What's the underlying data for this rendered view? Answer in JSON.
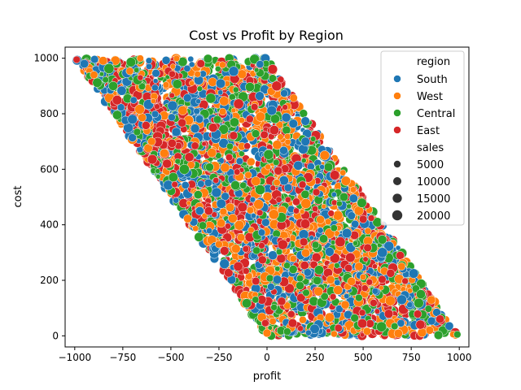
{
  "chart_data": {
    "type": "scatter",
    "title": "Cost vs Profit by Region",
    "xlabel": "profit",
    "ylabel": "cost",
    "xlim": [
      -1050,
      1050
    ],
    "ylim": [
      -40,
      1040
    ],
    "x_ticks": [
      -1000,
      -750,
      -500,
      -250,
      0,
      250,
      500,
      750,
      1000
    ],
    "y_ticks": [
      0,
      200,
      400,
      600,
      800,
      1000
    ],
    "grid": false,
    "data_region": {
      "description_note": "points fill parallelogram bounded by profit from (-cost) to (1000 - cost)",
      "cost_range": [
        0,
        1000
      ],
      "profit_offset_range": [
        0,
        1000
      ]
    },
    "hue_legend_title": "region",
    "size_legend_title": "sales",
    "series": [
      {
        "name": "South",
        "color": "#1f77b4"
      },
      {
        "name": "West",
        "color": "#ff7f0e"
      },
      {
        "name": "Central",
        "color": "#2ca02c"
      },
      {
        "name": "East",
        "color": "#d62728"
      }
    ],
    "size_legend": [
      5000,
      10000,
      15000,
      20000
    ],
    "legend_placement": "top-right",
    "sample_points": [
      {
        "profit": -990,
        "cost": 995,
        "sales": 6000,
        "region": "East"
      },
      {
        "profit": -950,
        "cost": 980,
        "sales": 12000,
        "region": "South"
      },
      {
        "profit": -900,
        "cost": 940,
        "sales": 8000,
        "region": "West"
      },
      {
        "profit": -800,
        "cost": 900,
        "sales": 15000,
        "region": "Central"
      },
      {
        "profit": -700,
        "cost": 780,
        "sales": 18000,
        "region": "South"
      },
      {
        "profit": -600,
        "cost": 700,
        "sales": 9000,
        "region": "West"
      },
      {
        "profit": -520,
        "cost": 620,
        "sales": 14000,
        "region": "East"
      },
      {
        "profit": -430,
        "cost": 600,
        "sales": 20000,
        "region": "Central"
      },
      {
        "profit": -350,
        "cost": 450,
        "sales": 11000,
        "region": "South"
      },
      {
        "profit": -250,
        "cost": 330,
        "sales": 7000,
        "region": "West"
      },
      {
        "profit": -150,
        "cost": 250,
        "sales": 16000,
        "region": "East"
      },
      {
        "profit": -60,
        "cost": 130,
        "sales": 5000,
        "region": "Central"
      },
      {
        "profit": 0,
        "cost": 10,
        "sales": 10000,
        "region": "West"
      },
      {
        "profit": 50,
        "cost": 900,
        "sales": 19000,
        "region": "East"
      },
      {
        "profit": 200,
        "cost": 700,
        "sales": 13000,
        "region": "South"
      },
      {
        "profit": 300,
        "cost": 650,
        "sales": 17000,
        "region": "West"
      },
      {
        "profit": 400,
        "cost": 500,
        "sales": 12000,
        "region": "Central"
      },
      {
        "profit": 500,
        "cost": 420,
        "sales": 9000,
        "region": "East"
      },
      {
        "profit": 600,
        "cost": 300,
        "sales": 20000,
        "region": "South"
      },
      {
        "profit": 700,
        "cost": 250,
        "sales": 8000,
        "region": "West"
      },
      {
        "profit": 800,
        "cost": 150,
        "sales": 15000,
        "region": "Central"
      },
      {
        "profit": 900,
        "cost": 60,
        "sales": 11000,
        "region": "East"
      },
      {
        "profit": 990,
        "cost": 5,
        "sales": 6000,
        "region": "Central"
      }
    ]
  }
}
